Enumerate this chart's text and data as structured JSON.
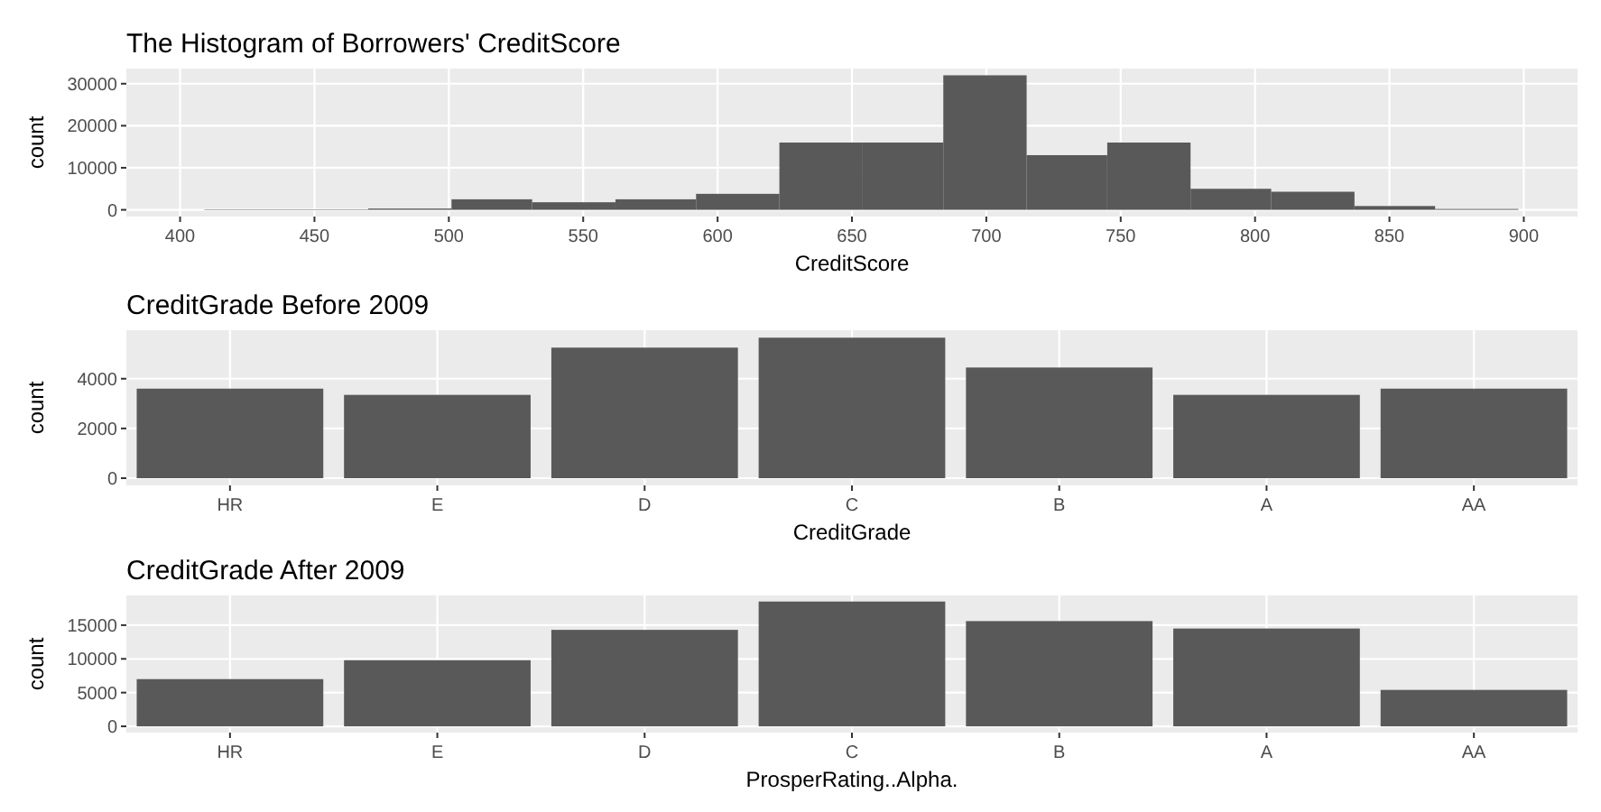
{
  "chart_data": [
    {
      "type": "histogram",
      "title": "The Histogram of Borrowers' CreditScore",
      "xlabel": "CreditScore",
      "ylabel": "count",
      "color": "#595959",
      "bins": [
        409,
        440,
        470,
        501,
        531,
        562,
        592,
        623,
        654,
        684,
        715,
        745,
        776,
        806,
        837,
        867,
        898
      ],
      "values": [
        100,
        100,
        300,
        2500,
        1800,
        2500,
        3800,
        16000,
        16000,
        32000,
        13000,
        16000,
        5000,
        4300,
        900,
        200
      ],
      "xlim": [
        380,
        920
      ],
      "xticks": [
        400,
        450,
        500,
        550,
        600,
        650,
        700,
        750,
        800,
        850,
        900
      ],
      "ylim": [
        -1600,
        33600
      ],
      "yticks": [
        0,
        10000,
        20000,
        30000
      ],
      "grid": true
    },
    {
      "type": "bar",
      "title": "CreditGrade Before 2009",
      "xlabel": "CreditGrade",
      "ylabel": "count",
      "color": "#595959",
      "categories": [
        "HR",
        "E",
        "D",
        "C",
        "B",
        "A",
        "AA"
      ],
      "values": [
        3600,
        3350,
        5250,
        5650,
        4450,
        3350,
        3600
      ],
      "ylim": [
        -290,
        5950
      ],
      "yticks": [
        0,
        2000,
        4000
      ],
      "grid": true
    },
    {
      "type": "bar",
      "title": "CreditGrade After 2009",
      "xlabel": "ProsperRating..Alpha.",
      "ylabel": "count",
      "color": "#595959",
      "categories": [
        "HR",
        "E",
        "D",
        "C",
        "B",
        "A",
        "AA"
      ],
      "values": [
        7000,
        9800,
        14300,
        18500,
        15600,
        14500,
        5400
      ],
      "ylim": [
        -930,
        19400
      ],
      "yticks": [
        0,
        5000,
        10000,
        15000
      ],
      "grid": true
    }
  ]
}
